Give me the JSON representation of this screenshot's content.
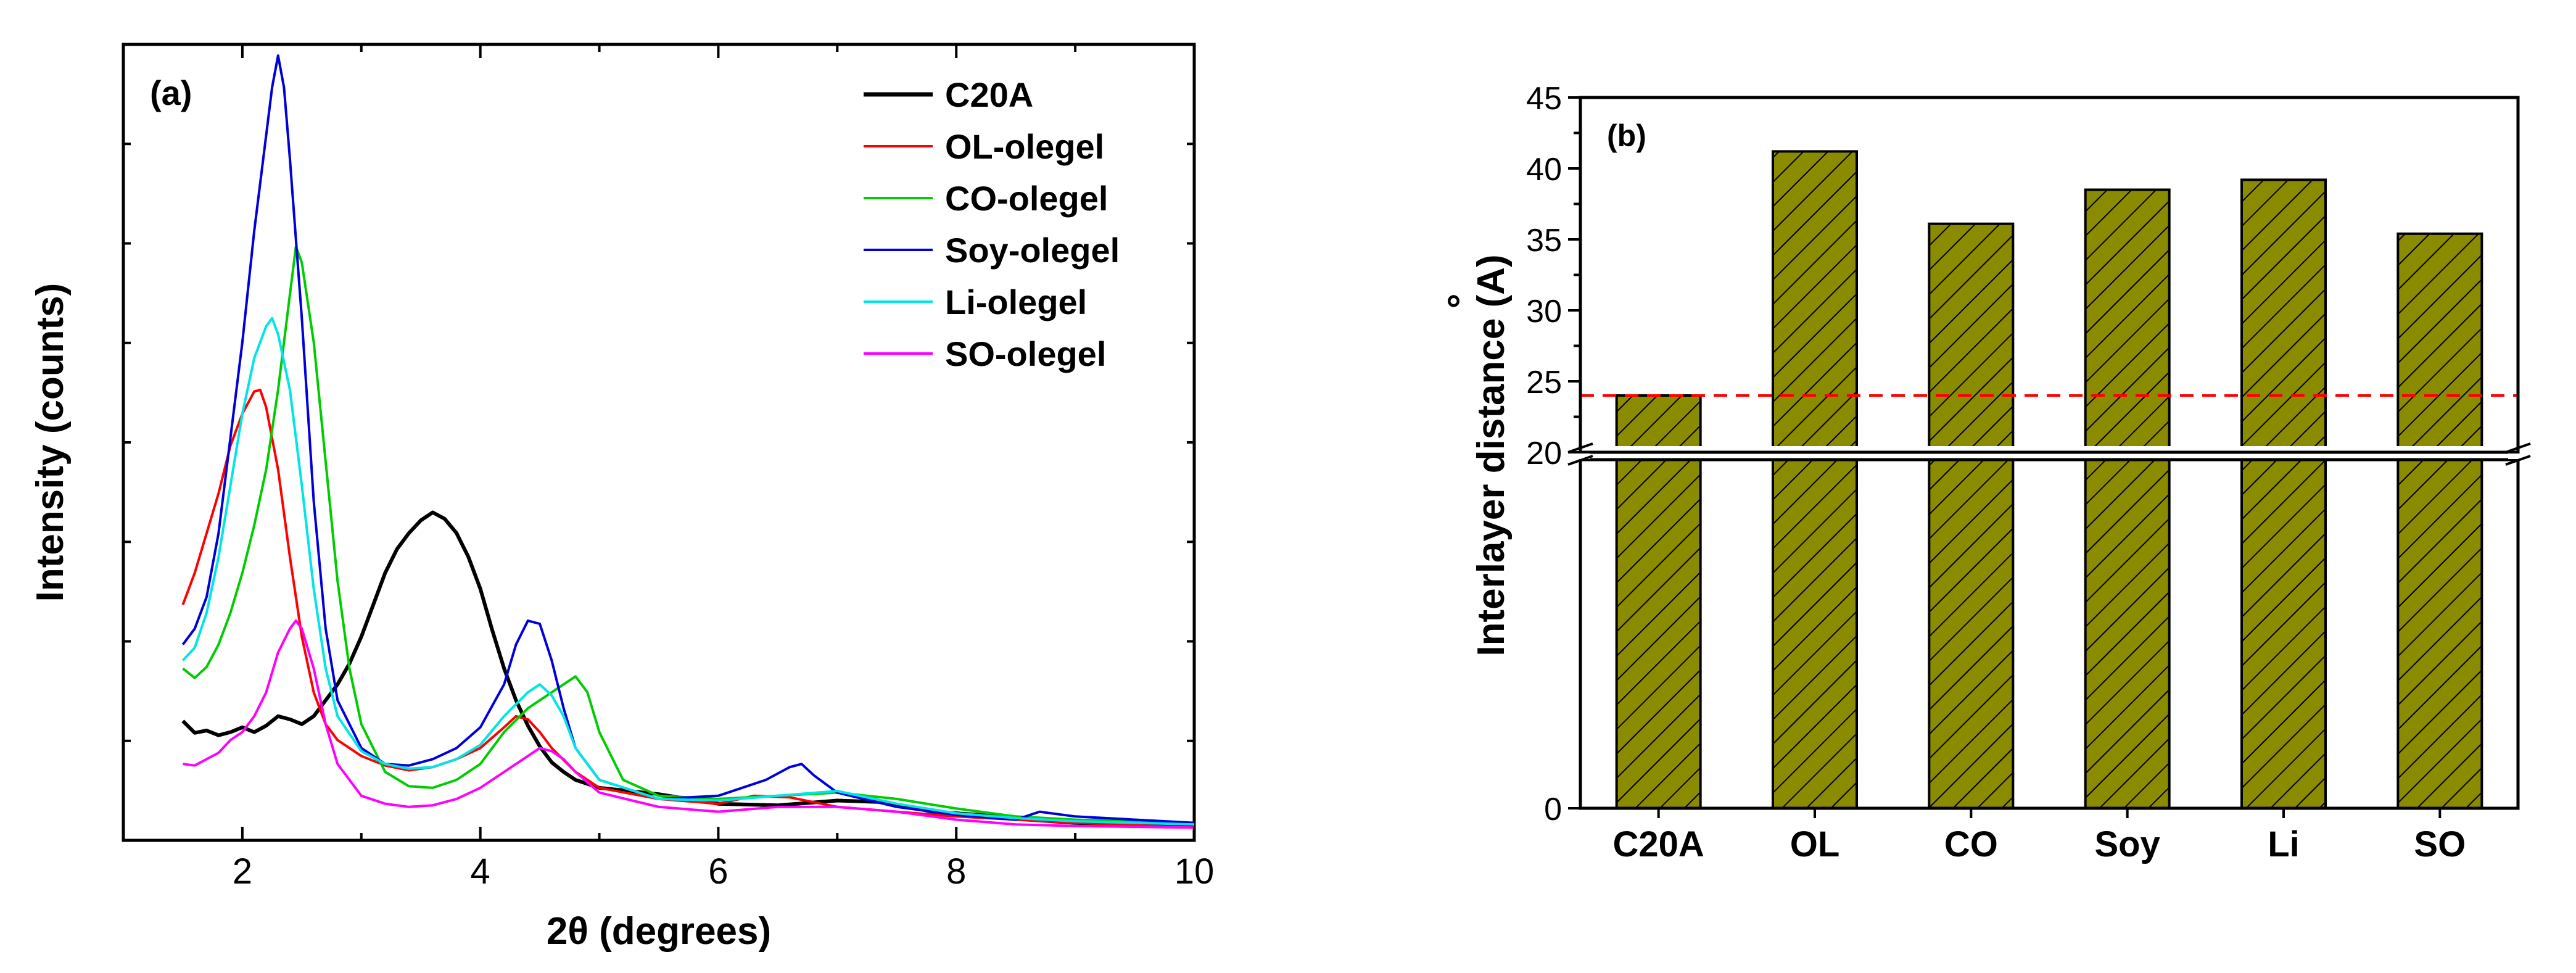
{
  "chart_data": [
    {
      "type": "line",
      "panel_label": "(a)",
      "xlabel": "2θ (degrees)",
      "ylabel": "Intensity (counts)",
      "xlim": [
        1,
        10
      ],
      "ylim": [
        0,
        100
      ],
      "xticks": [
        2,
        4,
        6,
        8,
        10
      ],
      "xtick_labels": [
        "2",
        "4",
        "6",
        "8",
        "10"
      ],
      "ytick_labels": [],
      "grid": false,
      "legend_position": "top-right",
      "series": [
        {
          "name": "C20A",
          "color": "#000000",
          "points": [
            [
              1.5,
              15
            ],
            [
              1.6,
              13.5
            ],
            [
              1.7,
              13.8
            ],
            [
              1.8,
              13.2
            ],
            [
              1.9,
              13.6
            ],
            [
              2.0,
              14.2
            ],
            [
              2.1,
              13.6
            ],
            [
              2.2,
              14.4
            ],
            [
              2.3,
              15.6
            ],
            [
              2.4,
              15.2
            ],
            [
              2.5,
              14.6
            ],
            [
              2.6,
              15.6
            ],
            [
              2.7,
              17.6
            ],
            [
              2.8,
              19.6
            ],
            [
              2.9,
              22.2
            ],
            [
              3.0,
              25.6
            ],
            [
              3.1,
              29.6
            ],
            [
              3.2,
              33.6
            ],
            [
              3.3,
              36.6
            ],
            [
              3.4,
              38.6
            ],
            [
              3.5,
              40.2
            ],
            [
              3.6,
              41.2
            ],
            [
              3.7,
              40.4
            ],
            [
              3.8,
              38.6
            ],
            [
              3.9,
              35.6
            ],
            [
              4.0,
              31.6
            ],
            [
              4.1,
              26.4
            ],
            [
              4.2,
              21.6
            ],
            [
              4.3,
              17.6
            ],
            [
              4.4,
              14.4
            ],
            [
              4.5,
              11.8
            ],
            [
              4.6,
              9.8
            ],
            [
              4.7,
              8.6
            ],
            [
              4.8,
              7.6
            ],
            [
              5.0,
              6.6
            ],
            [
              5.5,
              5.8
            ],
            [
              6.0,
              4.6
            ],
            [
              6.5,
              4.4
            ],
            [
              7.0,
              5.0
            ],
            [
              7.4,
              4.8
            ],
            [
              7.8,
              3.6
            ],
            [
              8.2,
              3.2
            ],
            [
              8.6,
              2.6
            ],
            [
              9.0,
              2.2
            ],
            [
              9.5,
              1.8
            ],
            [
              10.0,
              1.8
            ]
          ]
        },
        {
          "name": "OL-olegel",
          "color": "#ff0000",
          "points": [
            [
              1.5,
              29.6
            ],
            [
              1.6,
              33.6
            ],
            [
              1.7,
              38.6
            ],
            [
              1.8,
              43.6
            ],
            [
              1.9,
              49.6
            ],
            [
              2.0,
              53.6
            ],
            [
              2.1,
              56.4
            ],
            [
              2.15,
              56.6
            ],
            [
              2.2,
              54.4
            ],
            [
              2.3,
              46.6
            ],
            [
              2.4,
              35.6
            ],
            [
              2.5,
              25.6
            ],
            [
              2.6,
              18.6
            ],
            [
              2.7,
              14.6
            ],
            [
              2.8,
              12.6
            ],
            [
              3.0,
              10.6
            ],
            [
              3.2,
              9.4
            ],
            [
              3.4,
              8.8
            ],
            [
              3.6,
              9.2
            ],
            [
              3.8,
              10.2
            ],
            [
              4.0,
              11.6
            ],
            [
              4.2,
              14.2
            ],
            [
              4.3,
              15.6
            ],
            [
              4.4,
              15.2
            ],
            [
              4.5,
              13.6
            ],
            [
              4.6,
              11.6
            ],
            [
              4.8,
              8.6
            ],
            [
              5.0,
              6.6
            ],
            [
              5.5,
              5.2
            ],
            [
              6.0,
              4.6
            ],
            [
              6.3,
              5.6
            ],
            [
              6.6,
              5.4
            ],
            [
              7.0,
              4.2
            ],
            [
              7.5,
              3.6
            ],
            [
              8.0,
              3.0
            ],
            [
              8.5,
              2.6
            ],
            [
              9.0,
              2.2
            ],
            [
              10.0,
              1.6
            ]
          ]
        },
        {
          "name": "CO-olegel",
          "color": "#00cc00",
          "points": [
            [
              1.5,
              21.6
            ],
            [
              1.6,
              20.4
            ],
            [
              1.7,
              21.8
            ],
            [
              1.8,
              24.6
            ],
            [
              1.9,
              28.6
            ],
            [
              2.0,
              33.6
            ],
            [
              2.1,
              39.6
            ],
            [
              2.2,
              46.6
            ],
            [
              2.3,
              56.6
            ],
            [
              2.35,
              62.6
            ],
            [
              2.4,
              68.6
            ],
            [
              2.45,
              74.6
            ],
            [
              2.5,
              72.6
            ],
            [
              2.6,
              62.6
            ],
            [
              2.7,
              47.6
            ],
            [
              2.8,
              32.6
            ],
            [
              2.9,
              21.6
            ],
            [
              3.0,
              14.6
            ],
            [
              3.2,
              8.6
            ],
            [
              3.4,
              6.8
            ],
            [
              3.6,
              6.6
            ],
            [
              3.8,
              7.6
            ],
            [
              4.0,
              9.6
            ],
            [
              4.2,
              13.6
            ],
            [
              4.4,
              16.6
            ],
            [
              4.6,
              18.6
            ],
            [
              4.7,
              19.6
            ],
            [
              4.8,
              20.6
            ],
            [
              4.9,
              18.6
            ],
            [
              5.0,
              13.6
            ],
            [
              5.2,
              7.6
            ],
            [
              5.5,
              5.6
            ],
            [
              6.0,
              5.2
            ],
            [
              6.5,
              5.6
            ],
            [
              7.0,
              6.0
            ],
            [
              7.5,
              5.2
            ],
            [
              8.0,
              4.0
            ],
            [
              8.5,
              3.0
            ],
            [
              9.0,
              2.6
            ],
            [
              10.0,
              2.2
            ]
          ]
        },
        {
          "name": "Soy-olegel",
          "color": "#0000dd",
          "points": [
            [
              1.5,
              24.6
            ],
            [
              1.6,
              26.6
            ],
            [
              1.7,
              30.6
            ],
            [
              1.8,
              38.6
            ],
            [
              1.9,
              50.6
            ],
            [
              2.0,
              62.6
            ],
            [
              2.1,
              76.6
            ],
            [
              2.2,
              88.6
            ],
            [
              2.25,
              94.6
            ],
            [
              2.3,
              98.6
            ],
            [
              2.35,
              94.6
            ],
            [
              2.4,
              85.6
            ],
            [
              2.5,
              65.6
            ],
            [
              2.6,
              42.6
            ],
            [
              2.7,
              26.6
            ],
            [
              2.8,
              17.6
            ],
            [
              3.0,
              11.6
            ],
            [
              3.2,
              9.6
            ],
            [
              3.4,
              9.4
            ],
            [
              3.6,
              10.2
            ],
            [
              3.8,
              11.6
            ],
            [
              4.0,
              14.2
            ],
            [
              4.2,
              19.6
            ],
            [
              4.3,
              24.6
            ],
            [
              4.4,
              27.6
            ],
            [
              4.5,
              27.2
            ],
            [
              4.6,
              22.6
            ],
            [
              4.7,
              16.6
            ],
            [
              4.8,
              11.6
            ],
            [
              5.0,
              7.6
            ],
            [
              5.5,
              5.2
            ],
            [
              6.0,
              5.6
            ],
            [
              6.4,
              7.6
            ],
            [
              6.6,
              9.2
            ],
            [
              6.7,
              9.6
            ],
            [
              6.8,
              8.2
            ],
            [
              7.0,
              6.0
            ],
            [
              7.5,
              4.2
            ],
            [
              8.0,
              3.2
            ],
            [
              8.5,
              2.6
            ],
            [
              8.7,
              3.6
            ],
            [
              9.0,
              3.0
            ],
            [
              9.5,
              2.6
            ],
            [
              10.0,
              2.2
            ]
          ]
        },
        {
          "name": "Li-olegel",
          "color": "#00e5e5",
          "points": [
            [
              1.5,
              22.6
            ],
            [
              1.6,
              24.2
            ],
            [
              1.7,
              28.6
            ],
            [
              1.8,
              35.6
            ],
            [
              1.9,
              44.6
            ],
            [
              2.0,
              53.6
            ],
            [
              2.1,
              60.6
            ],
            [
              2.2,
              64.6
            ],
            [
              2.25,
              65.6
            ],
            [
              2.3,
              63.6
            ],
            [
              2.4,
              56.6
            ],
            [
              2.5,
              44.6
            ],
            [
              2.6,
              31.6
            ],
            [
              2.7,
              21.6
            ],
            [
              2.8,
              15.6
            ],
            [
              3.0,
              11.2
            ],
            [
              3.2,
              9.6
            ],
            [
              3.4,
              9.0
            ],
            [
              3.6,
              9.2
            ],
            [
              3.8,
              10.2
            ],
            [
              4.0,
              12.0
            ],
            [
              4.2,
              15.6
            ],
            [
              4.4,
              18.6
            ],
            [
              4.5,
              19.6
            ],
            [
              4.6,
              18.2
            ],
            [
              4.7,
              15.6
            ],
            [
              4.8,
              11.6
            ],
            [
              5.0,
              7.6
            ],
            [
              5.5,
              5.2
            ],
            [
              6.0,
              5.0
            ],
            [
              6.5,
              5.6
            ],
            [
              7.0,
              6.2
            ],
            [
              7.5,
              4.6
            ],
            [
              8.0,
              3.4
            ],
            [
              8.5,
              2.8
            ],
            [
              9.0,
              2.4
            ],
            [
              10.0,
              2.0
            ]
          ]
        },
        {
          "name": "SO-olegel",
          "color": "#ff00ff",
          "points": [
            [
              1.5,
              9.6
            ],
            [
              1.6,
              9.4
            ],
            [
              1.7,
              10.2
            ],
            [
              1.8,
              11.0
            ],
            [
              1.9,
              12.6
            ],
            [
              2.0,
              13.6
            ],
            [
              2.1,
              15.6
            ],
            [
              2.2,
              18.6
            ],
            [
              2.3,
              23.6
            ],
            [
              2.4,
              26.6
            ],
            [
              2.45,
              27.6
            ],
            [
              2.5,
              26.6
            ],
            [
              2.6,
              21.6
            ],
            [
              2.7,
              14.6
            ],
            [
              2.8,
              9.6
            ],
            [
              3.0,
              5.6
            ],
            [
              3.2,
              4.6
            ],
            [
              3.4,
              4.2
            ],
            [
              3.6,
              4.4
            ],
            [
              3.8,
              5.2
            ],
            [
              4.0,
              6.6
            ],
            [
              4.2,
              8.6
            ],
            [
              4.4,
              10.6
            ],
            [
              4.5,
              11.6
            ],
            [
              4.6,
              11.2
            ],
            [
              4.7,
              10.2
            ],
            [
              4.8,
              8.6
            ],
            [
              5.0,
              6.0
            ],
            [
              5.5,
              4.2
            ],
            [
              6.0,
              3.6
            ],
            [
              6.5,
              4.2
            ],
            [
              7.0,
              4.2
            ],
            [
              7.5,
              3.6
            ],
            [
              8.0,
              2.6
            ],
            [
              8.5,
              2.0
            ],
            [
              9.0,
              1.8
            ],
            [
              10.0,
              1.6
            ]
          ]
        }
      ]
    },
    {
      "type": "bar",
      "panel_label": "(b)",
      "xlabel": "",
      "ylabel": "Interlayer distance (A)",
      "ylabel_accent": "°",
      "categories": [
        "C20A",
        "OL",
        "CO",
        "Soy",
        "Li",
        "SO"
      ],
      "values": [
        24,
        41.2,
        36.1,
        38.5,
        39.2,
        35.4
      ],
      "ylim": [
        0,
        45
      ],
      "axis_break_at": 20,
      "yticks": [
        0,
        20,
        25,
        30,
        35,
        40,
        45
      ],
      "ytick_labels": [
        "0",
        "20",
        "25",
        "30",
        "35",
        "40",
        "45"
      ],
      "reference_line": 24,
      "reference_line_color": "#ff0000",
      "bar_color": "#8b8b00",
      "bar_pattern": "diagonal-hatch",
      "grid": false
    }
  ]
}
